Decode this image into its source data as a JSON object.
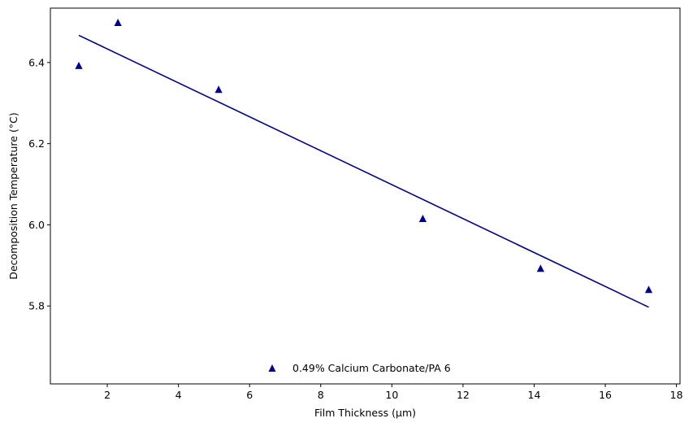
{
  "chart_data": {
    "type": "scatter",
    "xlabel": "Film Thickness (µm)",
    "ylabel": "Decomposition Temperature (°C)",
    "xlim": [
      0.4,
      18.1
    ],
    "ylim": [
      5.608,
      6.534
    ],
    "xticks": [
      2,
      4,
      6,
      8,
      10,
      12,
      14,
      16,
      18
    ],
    "yticks": [
      5.8,
      6.0,
      6.2,
      6.4
    ],
    "xtick_labels": [
      "2",
      "4",
      "6",
      "8",
      "10",
      "12",
      "14",
      "16",
      "18"
    ],
    "ytick_labels": [
      "5.8",
      "6.0",
      "6.2",
      "6.4"
    ],
    "grid": false,
    "legend_position": "bottom-center",
    "color": "#00008b",
    "series": [
      {
        "name": "0.49% Calcium Carbonate/PA 6",
        "marker": "triangle",
        "x": [
          1.2,
          2.3,
          5.13,
          10.87,
          14.18,
          17.22
        ],
        "y": [
          6.392,
          6.498,
          6.333,
          6.015,
          5.892,
          5.84
        ]
      }
    ],
    "fit_line": {
      "x": [
        1.2,
        17.22
      ],
      "y": [
        6.467,
        5.797
      ]
    }
  }
}
